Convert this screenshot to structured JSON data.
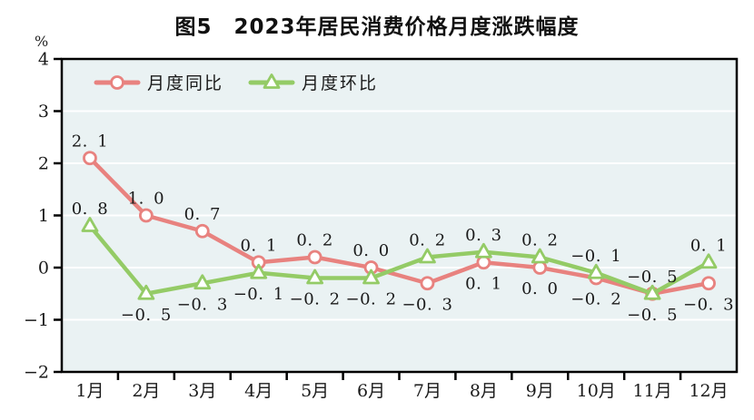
{
  "title": "图5　2023年居民消费价格月度涨跌幅度",
  "unit_label": "%",
  "chart_data": {
    "type": "line",
    "title": "图5　2023年居民消费价格月度涨跌幅度",
    "ylabel": "%",
    "categories": [
      "1月",
      "2月",
      "3月",
      "4月",
      "5月",
      "6月",
      "7月",
      "8月",
      "9月",
      "10月",
      "11月",
      "12月"
    ],
    "series": [
      {
        "name": "月度同比",
        "marker": "circle",
        "color": "#E8827F",
        "values": [
          2.1,
          1.0,
          0.7,
          0.1,
          0.2,
          0.0,
          -0.3,
          0.1,
          0.0,
          -0.2,
          -0.5,
          -0.3
        ],
        "label_sides": [
          "above",
          "above",
          "above",
          "above",
          "above",
          "above",
          "below",
          "below",
          "below",
          "below",
          "below",
          "below"
        ]
      },
      {
        "name": "月度环比",
        "marker": "triangle",
        "color": "#94CB66",
        "values": [
          0.8,
          -0.5,
          -0.3,
          -0.1,
          -0.2,
          -0.2,
          0.2,
          0.3,
          0.2,
          -0.1,
          -0.5,
          0.1
        ],
        "label_sides": [
          "above",
          "below",
          "below",
          "below",
          "below",
          "below",
          "above",
          "above",
          "above",
          "above",
          "above",
          "above"
        ]
      }
    ],
    "ylim": [
      -2,
      4
    ],
    "ytick_step": 1,
    "grid": true,
    "legend_position": "top-left",
    "colors": {
      "plot_background": "#EAF2F3",
      "gridline": "#FFFFFF",
      "axis": "#000000",
      "text": "#1A1A1A"
    }
  }
}
